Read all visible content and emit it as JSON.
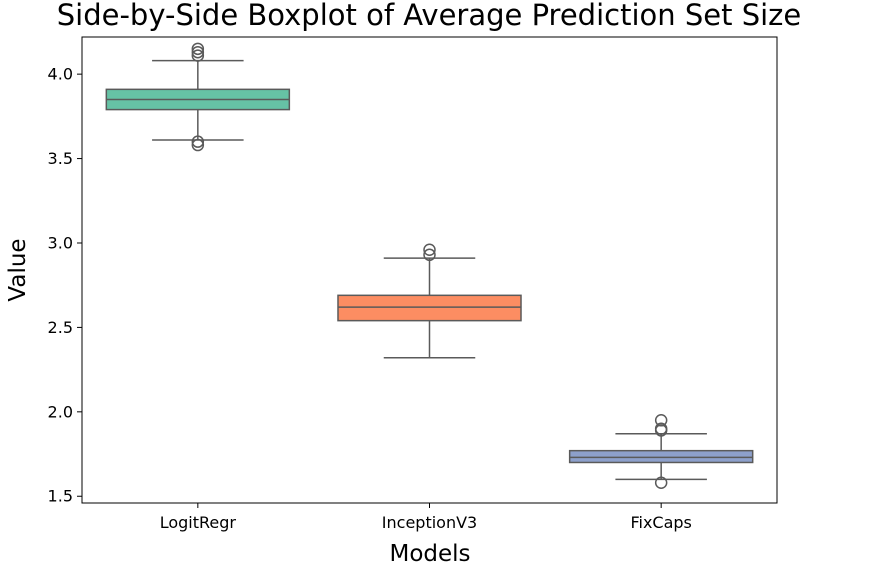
{
  "chart_data": {
    "type": "boxplot",
    "title": "Side-by-Side Boxplot of Average Prediction Set Size",
    "xlabel": "Models",
    "ylabel": "Value",
    "ylim": [
      1.46,
      4.22
    ],
    "yticks": [
      "1.5",
      "2.0",
      "2.5",
      "3.0",
      "3.5",
      "4.0"
    ],
    "grid": false,
    "categories": [
      "LogitRegr",
      "InceptionV3",
      "FixCaps"
    ],
    "boxes": [
      {
        "category": "LogitRegr",
        "color": "#66c2a5",
        "whisker_low": 3.61,
        "q1": 3.79,
        "median": 3.85,
        "q3": 3.91,
        "whisker_high": 4.08,
        "outliers": [
          4.15,
          4.13,
          4.11,
          3.6,
          3.58
        ]
      },
      {
        "category": "InceptionV3",
        "color": "#fc8d62",
        "whisker_low": 2.32,
        "q1": 2.54,
        "median": 2.62,
        "q3": 2.69,
        "whisker_high": 2.91,
        "outliers": [
          2.96,
          2.93
        ]
      },
      {
        "category": "FixCaps",
        "color": "#8da0cb",
        "whisker_low": 1.6,
        "q1": 1.7,
        "median": 1.73,
        "q3": 1.77,
        "whisker_high": 1.87,
        "outliers": [
          1.95,
          1.9,
          1.89,
          1.58
        ]
      }
    ]
  }
}
